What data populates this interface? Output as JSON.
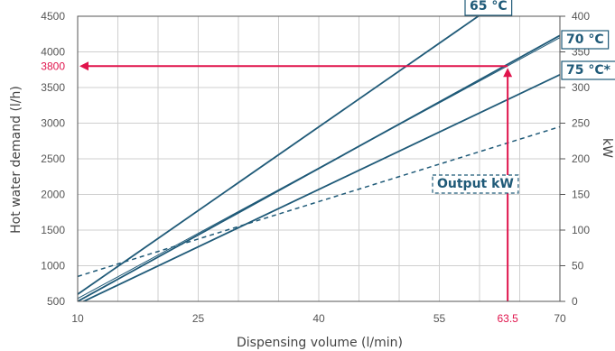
{
  "chart_data": {
    "type": "line",
    "xlabel": "Dispensing volume (l/min)",
    "ylabel": "Hot water demand (l/h)",
    "y2label": "kW",
    "x_ticks": [
      10,
      25,
      40,
      55,
      70
    ],
    "y_ticks": [
      500,
      1000,
      1500,
      2000,
      2500,
      3000,
      3500,
      4000,
      4500
    ],
    "y2_ticks": [
      0,
      50,
      100,
      150,
      200,
      250,
      300,
      350,
      400
    ],
    "xlim": [
      10,
      70
    ],
    "ylim": [
      500,
      4500
    ],
    "y2lim": [
      0,
      400
    ],
    "grid": true,
    "series": [
      {
        "name": "65 °C",
        "axis": "left",
        "style": "solid",
        "x": [
          10,
          60.6
        ],
        "y": [
          600,
          4560
        ]
      },
      {
        "name": "70 °C",
        "axis": "left",
        "style": "solid",
        "x": [
          10,
          70
        ],
        "y": [
          500,
          4230
        ]
      },
      {
        "name": "",
        "axis": "left",
        "style": "solid-thin",
        "x": [
          10,
          70
        ],
        "y": [
          540,
          4200
        ]
      },
      {
        "name": "75 °C*",
        "axis": "left",
        "style": "solid",
        "x": [
          10,
          70
        ],
        "y": [
          460,
          3680
        ]
      },
      {
        "name": "Output kW",
        "axis": "right",
        "style": "dashed",
        "x": [
          10,
          70
        ],
        "y": [
          35,
          245
        ]
      }
    ],
    "annotation": {
      "x": 63.5,
      "x_label": "63.5",
      "y": 3800,
      "y_label": "3800",
      "color": "#e0144c"
    }
  }
}
